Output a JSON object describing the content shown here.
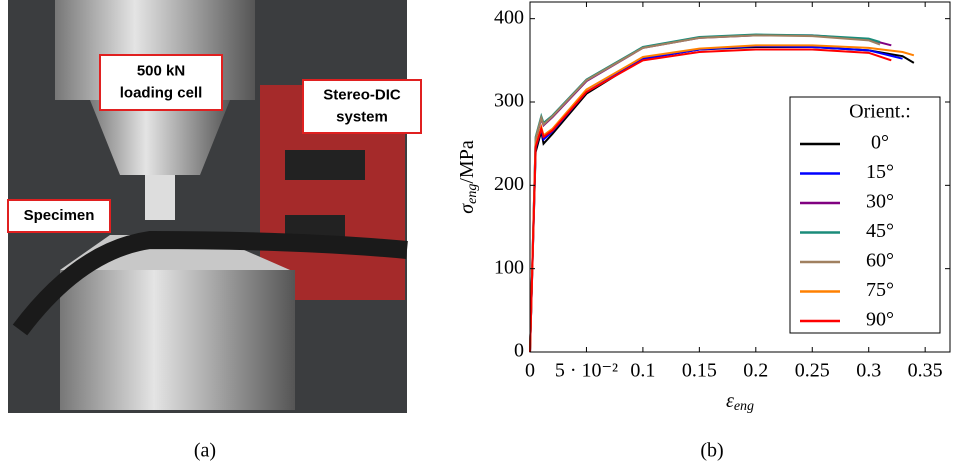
{
  "photo": {
    "labels": [
      {
        "lines": [
          "500 kN",
          "loading cell"
        ]
      },
      {
        "lines": [
          "Stereo-DIC",
          "system"
        ]
      },
      {
        "lines": [
          "Specimen"
        ]
      }
    ],
    "caption": "(a)"
  },
  "chart_data": {
    "type": "line",
    "caption": "(b)",
    "y_label": {
      "symbol": "σ",
      "subscript": "eng",
      "unit": "/MPa"
    },
    "x_label": {
      "symbol": "ε",
      "subscript": "eng"
    },
    "xlim": [
      0,
      0.372
    ],
    "ylim": [
      0,
      420
    ],
    "xticks": [
      0,
      {
        "value": 0.05,
        "label": "5 · 10⁻²"
      },
      0.1,
      0.15,
      0.2,
      0.25,
      0.3,
      0.35
    ],
    "yticks": [
      0,
      100,
      200,
      300,
      400
    ],
    "legend_title": "Orient.:",
    "series": [
      {
        "name": "0°",
        "color": "#000000",
        "x": [
          0,
          0.005,
          0.01,
          0.012,
          0.02,
          0.05,
          0.1,
          0.15,
          0.2,
          0.25,
          0.3,
          0.33,
          0.34
        ],
        "values": [
          0,
          240,
          265,
          250,
          262,
          310,
          352,
          363,
          366,
          366,
          362,
          355,
          347
        ]
      },
      {
        "name": "15°",
        "color": "#0000ff",
        "x": [
          0,
          0.005,
          0.01,
          0.012,
          0.02,
          0.05,
          0.1,
          0.15,
          0.2,
          0.25,
          0.3,
          0.33
        ],
        "values": [
          0,
          245,
          268,
          255,
          265,
          312,
          352,
          363,
          367,
          366,
          362,
          352
        ]
      },
      {
        "name": "30°",
        "color": "#800080",
        "x": [
          0,
          0.005,
          0.01,
          0.012,
          0.02,
          0.05,
          0.1,
          0.15,
          0.2,
          0.25,
          0.3,
          0.32
        ],
        "values": [
          0,
          255,
          280,
          272,
          282,
          325,
          365,
          377,
          380,
          380,
          375,
          368
        ]
      },
      {
        "name": "45°",
        "color": "#1a8c7a",
        "x": [
          0,
          0.005,
          0.01,
          0.012,
          0.02,
          0.05,
          0.1,
          0.15,
          0.2,
          0.25,
          0.3,
          0.31
        ],
        "values": [
          0,
          258,
          283,
          275,
          284,
          327,
          366,
          378,
          381,
          380,
          376,
          372
        ]
      },
      {
        "name": "60°",
        "color": "#a08060",
        "x": [
          0,
          0.005,
          0.01,
          0.012,
          0.02,
          0.05,
          0.1,
          0.15,
          0.2,
          0.25,
          0.3,
          0.31
        ],
        "values": [
          0,
          256,
          281,
          273,
          283,
          326,
          365,
          377,
          380,
          379,
          374,
          369
        ]
      },
      {
        "name": "75°",
        "color": "#ff8000",
        "x": [
          0,
          0.005,
          0.01,
          0.012,
          0.02,
          0.05,
          0.1,
          0.15,
          0.2,
          0.25,
          0.3,
          0.33,
          0.34
        ],
        "values": [
          0,
          248,
          270,
          260,
          268,
          315,
          354,
          364,
          368,
          368,
          365,
          360,
          356
        ]
      },
      {
        "name": "90°",
        "color": "#ff0000",
        "x": [
          0,
          0.005,
          0.01,
          0.012,
          0.02,
          0.05,
          0.1,
          0.15,
          0.2,
          0.25,
          0.3,
          0.32
        ],
        "values": [
          0,
          246,
          268,
          258,
          266,
          312,
          350,
          360,
          363,
          363,
          359,
          350
        ]
      }
    ]
  }
}
